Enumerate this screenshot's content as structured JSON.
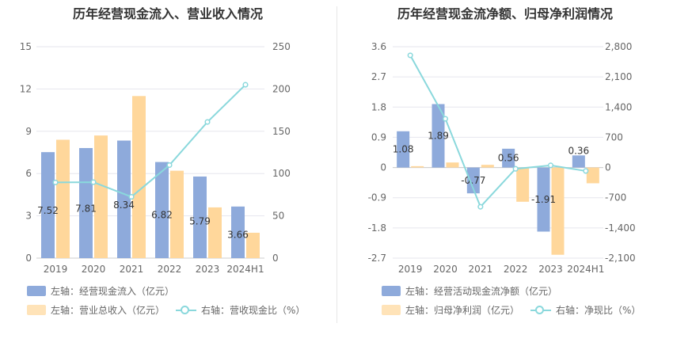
{
  "colors": {
    "bar_blue": "#8eaadb",
    "bar_orange": "#ffd79b",
    "line_teal": "#8ad8dc",
    "grid": "#e6e6ee",
    "axis_text": "#666666"
  },
  "charts": [
    {
      "title": "历年经营现金流入、营业收入情况",
      "legend": [
        "左轴：经营现金流入（亿元）",
        "左轴：营业总收入（亿元）",
        "右轴：营收现金比（%）"
      ]
    },
    {
      "title": "历年经营现金流净额、归母净利润情况",
      "legend": [
        "左轴：经营活动现金流净额（亿元）",
        "左轴：归母净利润（亿元）",
        "右轴：净现比（%）"
      ]
    }
  ],
  "chart_data": [
    {
      "type": "bar",
      "title": "历年经营现金流入、营业收入情况",
      "categories": [
        "2019",
        "2020",
        "2021",
        "2022",
        "2023",
        "2024H1"
      ],
      "left_ticks": [
        "0",
        "3",
        "6",
        "9",
        "12",
        "15"
      ],
      "right_ticks": [
        "0",
        "50",
        "100",
        "150",
        "200",
        "250"
      ],
      "ylim_left": [
        0,
        15
      ],
      "ylim_right": [
        0,
        250
      ],
      "grid": true,
      "legend_position": "bottom",
      "series": [
        {
          "name": "左轴：经营现金流入（亿元）",
          "kind": "bar",
          "axis": "left",
          "values": [
            7.52,
            7.81,
            8.34,
            6.82,
            5.79,
            3.66
          ],
          "labels": [
            "7.52",
            "7.81",
            "8.34",
            "6.82",
            "5.79",
            "3.66"
          ]
        },
        {
          "name": "左轴：营业总收入（亿元）",
          "kind": "bar",
          "axis": "left",
          "values": [
            8.4,
            8.7,
            11.5,
            6.2,
            3.6,
            1.8
          ]
        },
        {
          "name": "右轴：营收现金比（%）",
          "kind": "line",
          "axis": "right",
          "values": [
            89.5,
            89.8,
            72.5,
            110,
            161,
            205
          ]
        }
      ]
    },
    {
      "type": "bar",
      "title": "历年经营现金流净额、归母净利润情况",
      "categories": [
        "2019",
        "2020",
        "2021",
        "2022",
        "2023",
        "2024H1"
      ],
      "left_ticks": [
        "-2.7",
        "-1.8",
        "-0.9",
        "0",
        "0.9",
        "1.8",
        "2.7",
        "3.6"
      ],
      "right_ticks": [
        "-2,100",
        "-1,400",
        "-700",
        "0",
        "700",
        "1,400",
        "2,100",
        "2,800"
      ],
      "ylim_left": [
        -2.7,
        3.6
      ],
      "ylim_right": [
        -2100,
        2800
      ],
      "grid": true,
      "legend_position": "bottom",
      "series": [
        {
          "name": "左轴：经营活动现金流净额（亿元）",
          "kind": "bar",
          "axis": "left",
          "values": [
            1.08,
            1.89,
            -0.77,
            0.56,
            -1.91,
            0.36
          ],
          "labels": [
            "1.08",
            "1.89",
            "-0.77",
            "0.56",
            "-1.91",
            "0.36"
          ]
        },
        {
          "name": "左轴：归母净利润（亿元）",
          "kind": "bar",
          "axis": "left",
          "values": [
            0.04,
            0.15,
            0.08,
            -1.02,
            -2.6,
            -0.47
          ]
        },
        {
          "name": "右轴：净现比（%）",
          "kind": "line",
          "axis": "right",
          "values": [
            2600,
            1130,
            -910,
            -30,
            50,
            -80
          ]
        }
      ]
    }
  ]
}
